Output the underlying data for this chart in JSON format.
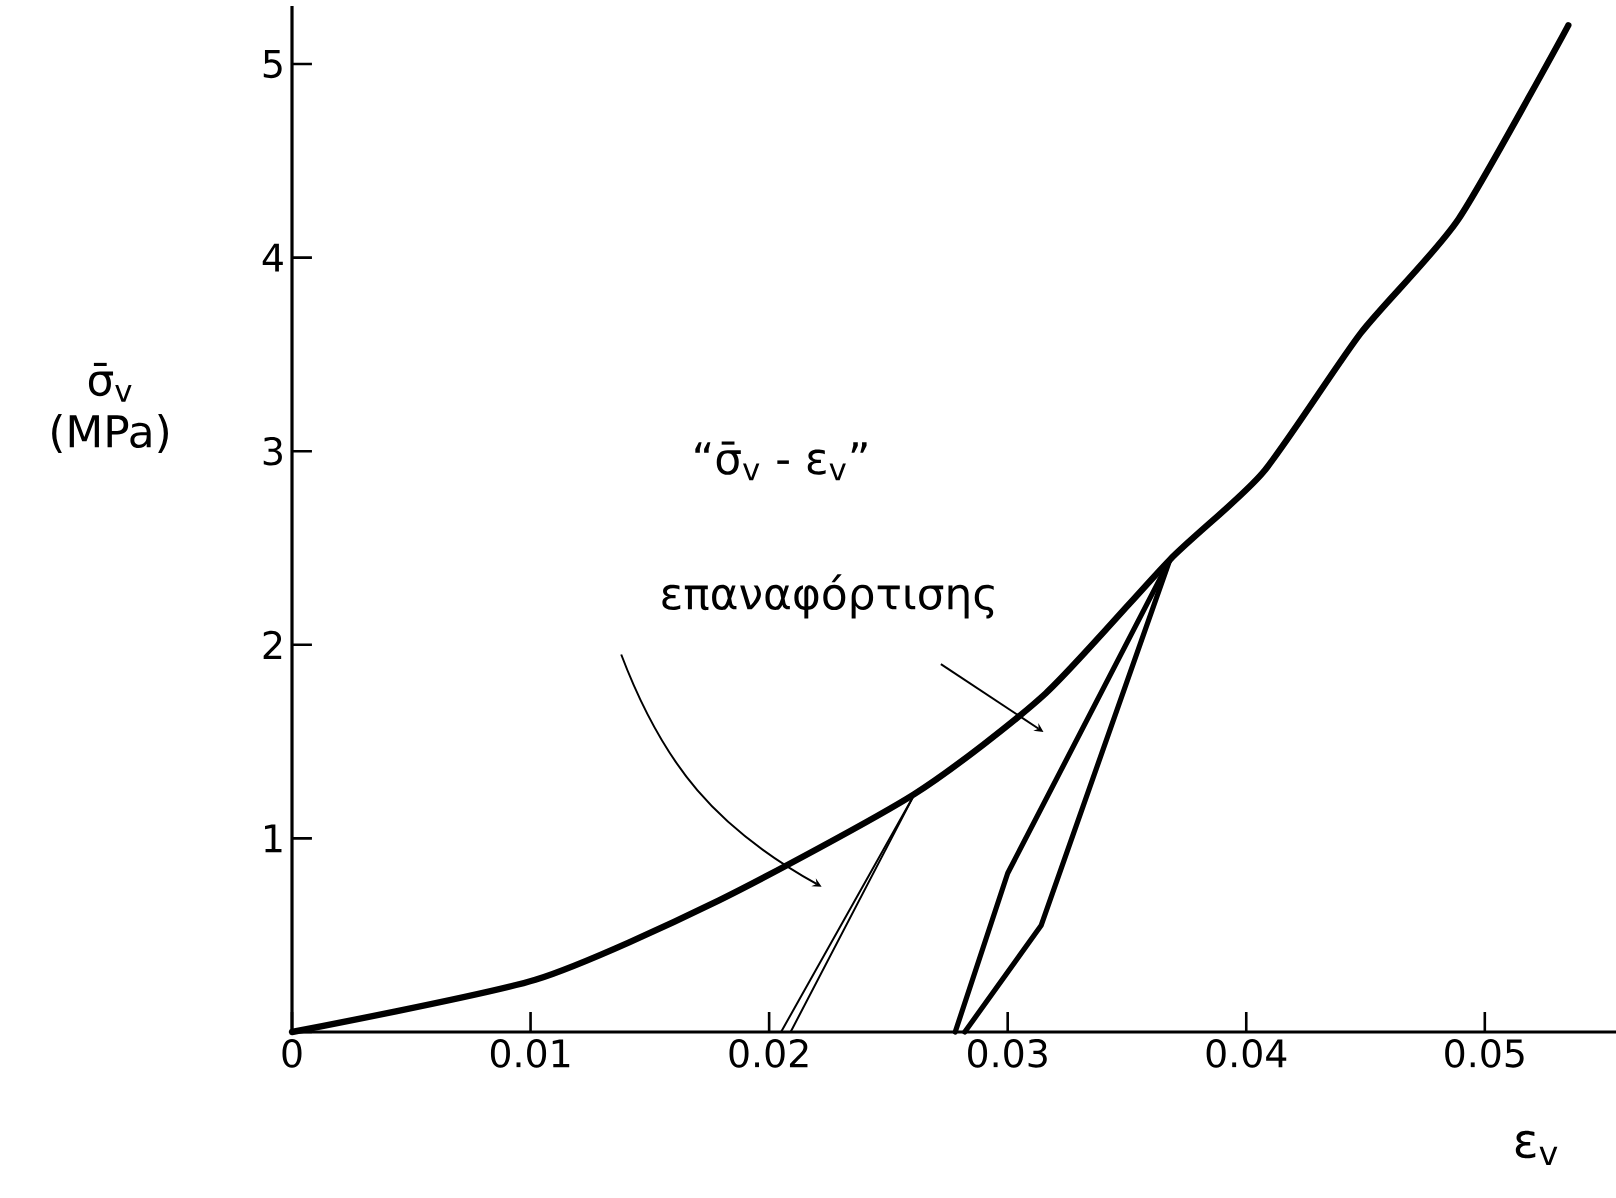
{
  "chart_data": {
    "type": "line",
    "xlabel": "ε$_{v}$",
    "ylabel": "σ̄$_{v}$ (MPa)",
    "annotations": [
      "“σ̄$_{v}$ - ε$_{v}$”",
      "επαναφόρτισης"
    ],
    "xlim": [
      0,
      0.0555
    ],
    "ylim": [
      0,
      5.3
    ],
    "xticks": [
      0,
      0.01,
      0.02,
      0.03,
      0.04,
      0.05
    ],
    "yticks": [
      {
        "value": 0,
        "label": null
      },
      1,
      2,
      3,
      4,
      5
    ],
    "grid": false,
    "marker": "none",
    "line_style": "solid",
    "series": [
      {
        "color": "#000000",
        "x": [
          0,
          0.0102,
          0.0179,
          0.0261,
          0.0316,
          0.0368,
          0.0407,
          0.0448,
          0.0489,
          0.0535
        ],
        "values": [
          0,
          0.27,
          0.68,
          1.23,
          1.75,
          2.44,
          2.89,
          3.61,
          4.2,
          5.2
        ]
      },
      {
        "color": "#000000",
        "x": [
          0.0278,
          0.03,
          0.0368
        ],
        "values": [
          0,
          0.82,
          2.44
        ]
      },
      {
        "color": "#000000",
        "x": [
          0.0282,
          0.0314,
          0.0368
        ],
        "values": [
          0,
          0.55,
          2.44
        ]
      },
      {
        "color": "#000000",
        "x": [
          0.0205,
          0.0261
        ],
        "values": [
          0,
          1.23
        ]
      },
      {
        "color": "#000000",
        "x": [
          0.0209,
          0.0261
        ],
        "values": [
          0,
          1.23
        ]
      }
    ]
  }
}
